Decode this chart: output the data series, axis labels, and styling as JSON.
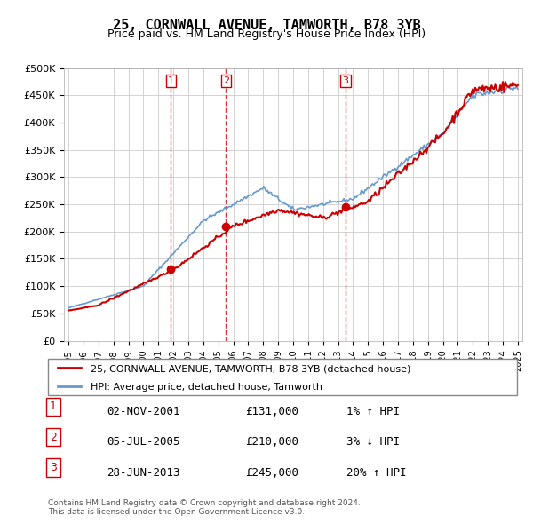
{
  "title": "25, CORNWALL AVENUE, TAMWORTH, B78 3YB",
  "subtitle": "Price paid vs. HM Land Registry's House Price Index (HPI)",
  "ylabel": "",
  "ylim": [
    0,
    500000
  ],
  "yticks": [
    0,
    50000,
    100000,
    150000,
    200000,
    250000,
    300000,
    350000,
    400000,
    450000,
    500000
  ],
  "ytick_labels": [
    "£0",
    "£50K",
    "£100K",
    "£150K",
    "£200K",
    "£250K",
    "£300K",
    "£350K",
    "£400K",
    "£450K",
    "£500K"
  ],
  "sale_dates": [
    "2001-11-02",
    "2005-07-05",
    "2013-06-28"
  ],
  "sale_prices": [
    131000,
    210000,
    245000
  ],
  "sale_labels": [
    "1",
    "2",
    "3"
  ],
  "sale_info": [
    [
      "1",
      "02-NOV-2001",
      "£131,000",
      "1% ↑ HPI"
    ],
    [
      "2",
      "05-JUL-2005",
      "£210,000",
      "3% ↓ HPI"
    ],
    [
      "3",
      "28-JUN-2013",
      "£245,000",
      "20% ↑ HPI"
    ]
  ],
  "legend_line1": "25, CORNWALL AVENUE, TAMWORTH, B78 3YB (detached house)",
  "legend_line2": "HPI: Average price, detached house, Tamworth",
  "footer": "Contains HM Land Registry data © Crown copyright and database right 2024.\nThis data is licensed under the Open Government Licence v3.0.",
  "price_color": "#cc0000",
  "hpi_color": "#6699cc",
  "sale_vline_color": "#cc0000",
  "background_color": "#ffffff",
  "grid_color": "#cccccc",
  "x_start_year": 1995,
  "x_end_year": 2025
}
